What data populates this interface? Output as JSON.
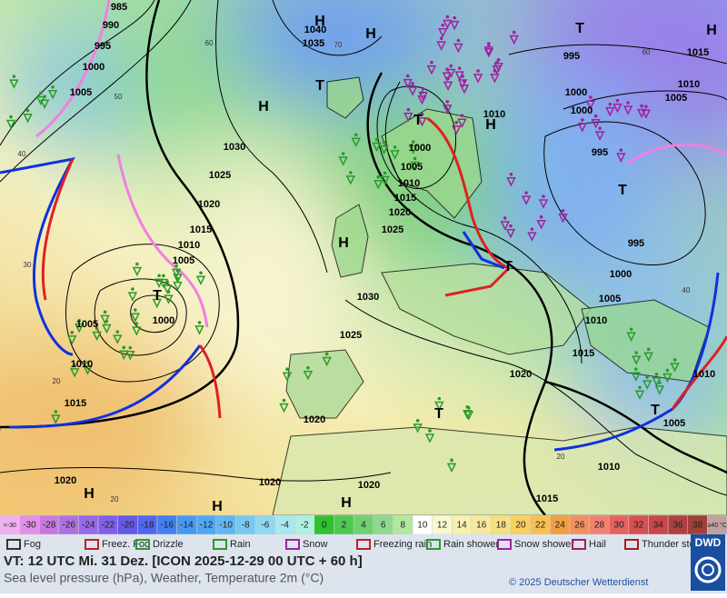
{
  "map": {
    "isobar_labels": [
      985,
      990,
      995,
      1000,
      1005,
      1040,
      1035,
      1030,
      1025,
      1020,
      1015,
      1010,
      1005,
      1005,
      1000,
      1010,
      1015,
      1000,
      1005,
      1010,
      1015,
      1020,
      1025,
      1030,
      1025,
      1020,
      1020,
      1020,
      1020,
      1015,
      1010,
      1005,
      1010,
      1015,
      1010,
      1005,
      1000,
      995,
      995,
      1000,
      1000,
      995,
      1005,
      1010,
      1015,
      1010,
      1020
    ],
    "height_labels": [
      60,
      50,
      70,
      40,
      30,
      20,
      20,
      20,
      60,
      40
    ],
    "pressure_centers": [
      "H",
      "H",
      "H",
      "T",
      "T",
      "H",
      "T",
      "H",
      "T",
      "H",
      "T",
      "T",
      "T",
      "T",
      "H",
      "H",
      "H"
    ]
  },
  "legend": {
    "temperature_scale": [
      {
        "label": "<-30",
        "color": "#f0b0f0"
      },
      {
        "value": -30,
        "color": "#e090e8"
      },
      {
        "value": -28,
        "color": "#c878e0"
      },
      {
        "value": -26,
        "color": "#b070e0"
      },
      {
        "value": -24,
        "color": "#9868e8"
      },
      {
        "value": -22,
        "color": "#8060e8"
      },
      {
        "value": -20,
        "color": "#6858e8"
      },
      {
        "value": -18,
        "color": "#5068f0"
      },
      {
        "value": -16,
        "color": "#4080f0"
      },
      {
        "value": -14,
        "color": "#4898f0"
      },
      {
        "value": -12,
        "color": "#50a8f0"
      },
      {
        "value": -10,
        "color": "#60b8f0"
      },
      {
        "value": -8,
        "color": "#78c8f0"
      },
      {
        "value": -6,
        "color": "#90d8f0"
      },
      {
        "value": -4,
        "color": "#a8e8f0"
      },
      {
        "value": -2,
        "color": "#b0f0e0"
      },
      {
        "value": 0,
        "color": "#30c030"
      },
      {
        "value": 2,
        "color": "#50c850"
      },
      {
        "value": 4,
        "color": "#70d070"
      },
      {
        "value": 6,
        "color": "#90d890"
      },
      {
        "value": 8,
        "color": "#b0e8a0"
      },
      {
        "value": 10,
        "color": "#ffffff"
      },
      {
        "value": 12,
        "color": "#f8f8d0"
      },
      {
        "value": 14,
        "color": "#f8f0b0"
      },
      {
        "value": 16,
        "color": "#f8e8a0"
      },
      {
        "value": 18,
        "color": "#f8e080"
      },
      {
        "value": 20,
        "color": "#f8d060"
      },
      {
        "value": 22,
        "color": "#f8c050"
      },
      {
        "value": 24,
        "color": "#f0a040"
      },
      {
        "value": 26,
        "color": "#f09060"
      },
      {
        "value": 28,
        "color": "#f08070"
      },
      {
        "value": 30,
        "color": "#e86060"
      },
      {
        "value": 32,
        "color": "#d85050"
      },
      {
        "value": 34,
        "color": "#c84848"
      },
      {
        "value": 36,
        "color": "#b04040"
      },
      {
        "value": 38,
        "color": "#a04038"
      },
      {
        "label": "≥40 °C",
        "color": "#c0a0a0"
      }
    ],
    "weather_symbols": [
      "Fog",
      "Freez. Fog",
      "Drizzle",
      "Rain",
      "Snow",
      "Freezing rain",
      "Rain shower",
      "Snow shower",
      "Hail",
      "Thunder storm"
    ]
  },
  "footer": {
    "valid_time": "VT: 12 UTC Mi.  31 Dez. [ICON 2025-12-29  00 UTC + 60 h]",
    "description": "Sea level pressure (hPa), Weather, Temperature 2m (°C)",
    "copyright": "© 2025 Deutscher Wetterdienst",
    "logo": "DWD"
  }
}
